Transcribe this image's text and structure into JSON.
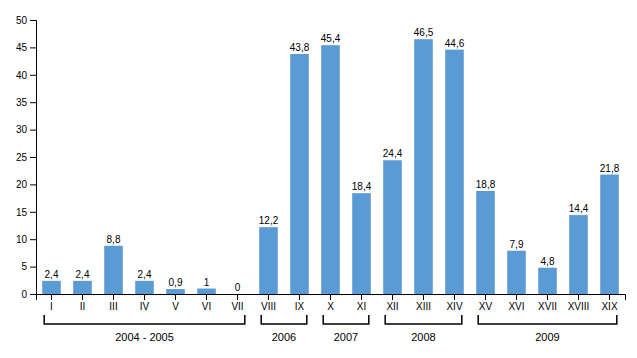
{
  "chart_data": {
    "type": "bar",
    "categories": [
      "I",
      "II",
      "III",
      "IV",
      "V",
      "VI",
      "VII",
      "VIII",
      "IX",
      "X",
      "XI",
      "XII",
      "XIII",
      "XIV",
      "XV",
      "XVI",
      "XVII",
      "XVIII",
      "XIX"
    ],
    "values": [
      2.4,
      2.4,
      8.8,
      2.4,
      0.9,
      1.0,
      0.0,
      12.2,
      43.8,
      45.4,
      18.4,
      24.4,
      46.5,
      44.6,
      18.8,
      7.9,
      4.8,
      14.4,
      21.8
    ],
    "value_labels": [
      "2,4",
      "2,4",
      "8,8",
      "2,4",
      "0,9",
      "1",
      "0",
      "12,2",
      "43,8",
      "45,4",
      "18,4",
      "24,4",
      "46,5",
      "44,6",
      "18,8",
      "7,9",
      "4,8",
      "14,4",
      "21,8"
    ],
    "data_labels": true,
    "color": "#5b9bd5",
    "ylim": [
      0,
      50
    ],
    "yticks": [
      0,
      5,
      10,
      15,
      20,
      25,
      30,
      35,
      40,
      45,
      50
    ],
    "grid": false,
    "annotations": [
      {
        "text": "2004 - 2005",
        "from": "I",
        "to": "VII"
      },
      {
        "text": "2006",
        "from": "VIII",
        "to": "IX"
      },
      {
        "text": "2007",
        "from": "X",
        "to": "XI"
      },
      {
        "text": "2008",
        "from": "XII",
        "to": "XIV"
      },
      {
        "text": "2009",
        "from": "XV",
        "to": "XIX"
      }
    ]
  }
}
